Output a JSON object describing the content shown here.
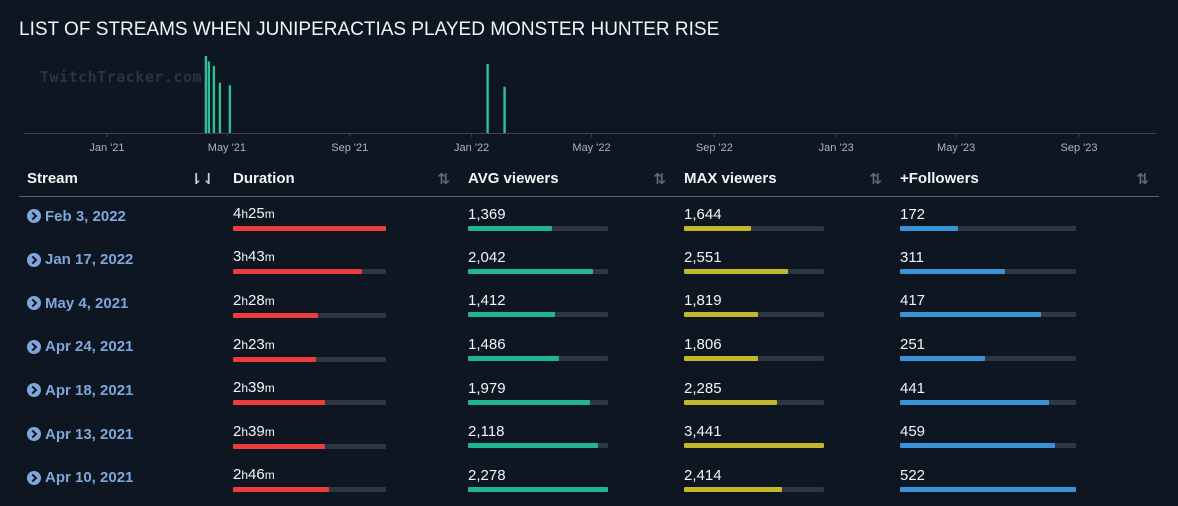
{
  "page_title": "LIST OF STREAMS WHEN JUNIPERACTIAS PLAYED MONSTER HUNTER RISE",
  "watermark": "TwitchTracker.com",
  "colors": {
    "duration": "#ee3b3b",
    "avg": "#20b594",
    "max": "#c2b829",
    "followers": "#3a93d6",
    "histogram": "#2fbf95"
  },
  "chart_data": {
    "type": "bar",
    "x_tick_labels": [
      "Jan '21",
      "May '21",
      "Sep '21",
      "Jan '22",
      "May '22",
      "Sep '22",
      "Jan '23",
      "May '23",
      "Sep '23"
    ],
    "x": [
      "2021-04-10",
      "2021-04-13",
      "2021-04-18",
      "2021-04-24",
      "2021-05-04",
      "2022-01-17",
      "2022-02-03"
    ],
    "values": [
      2278,
      2118,
      1979,
      1486,
      1412,
      2042,
      1369
    ],
    "grid": false,
    "legend": "none"
  },
  "table": {
    "headers": {
      "stream": "Stream",
      "duration": "Duration",
      "avg": "AVG viewers",
      "max": "MAX viewers",
      "followers": "+Followers"
    },
    "sort_icon": "sort-arrows-icon",
    "rows": [
      {
        "date": "Feb 3, 2022",
        "dur_h": "4",
        "dur_m": "25",
        "dur_frac": 1.0,
        "avg": "1,369",
        "avg_frac": 0.601,
        "max": "1,644",
        "max_frac": 0.478,
        "fol": "172",
        "fol_frac": 0.33
      },
      {
        "date": "Jan 17, 2022",
        "dur_h": "3",
        "dur_m": "43",
        "dur_frac": 0.842,
        "avg": "2,042",
        "avg_frac": 0.896,
        "max": "2,551",
        "max_frac": 0.741,
        "fol": "311",
        "fol_frac": 0.596
      },
      {
        "date": "May 4, 2021",
        "dur_h": "2",
        "dur_m": "28",
        "dur_frac": 0.558,
        "avg": "1,412",
        "avg_frac": 0.62,
        "max": "1,819",
        "max_frac": 0.529,
        "fol": "417",
        "fol_frac": 0.799
      },
      {
        "date": "Apr 24, 2021",
        "dur_h": "2",
        "dur_m": "23",
        "dur_frac": 0.54,
        "avg": "1,486",
        "avg_frac": 0.652,
        "max": "1,806",
        "max_frac": 0.525,
        "fol": "251",
        "fol_frac": 0.481
      },
      {
        "date": "Apr 18, 2021",
        "dur_h": "2",
        "dur_m": "39",
        "dur_frac": 0.6,
        "avg": "1,979",
        "avg_frac": 0.869,
        "max": "2,285",
        "max_frac": 0.664,
        "fol": "441",
        "fol_frac": 0.845
      },
      {
        "date": "Apr 13, 2021",
        "dur_h": "2",
        "dur_m": "39",
        "dur_frac": 0.6,
        "avg": "2,118",
        "avg_frac": 0.93,
        "max": "3,441",
        "max_frac": 1.0,
        "fol": "459",
        "fol_frac": 0.879
      },
      {
        "date": "Apr 10, 2021",
        "dur_h": "2",
        "dur_m": "46",
        "dur_frac": 0.626,
        "avg": "2,278",
        "avg_frac": 1.0,
        "max": "2,414",
        "max_frac": 0.702,
        "fol": "522",
        "fol_frac": 1.0
      }
    ]
  }
}
